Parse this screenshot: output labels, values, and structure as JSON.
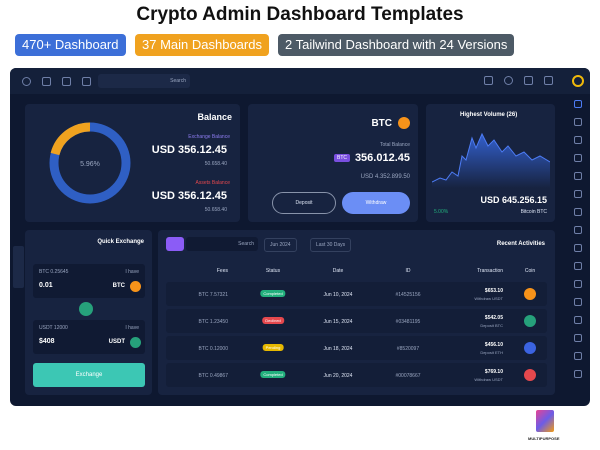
{
  "header": {
    "title": "Crypto Admin Dashboard Templates",
    "badges": [
      {
        "text": "470+ Dashboard",
        "color": "#3c6fd8"
      },
      {
        "text": "37 Main Dashboards",
        "color": "#f0a21f"
      },
      {
        "text": "2 Tailwind Dashboard with 24 Versions",
        "color": "#4d5a66"
      }
    ]
  },
  "topbar": {
    "search": "Search"
  },
  "balance": {
    "title": "Balance",
    "percent": "5.96%",
    "exchange_label": "Exchange Balance",
    "exchange_value": "USD 356.12.45",
    "exchange_sub": "50.658.40",
    "assets_label": "Assets Balance",
    "assets_value": "USD 356.12.45",
    "assets_sub": "50.658.40"
  },
  "btc": {
    "title": "BTC",
    "total_label": "Total Balance",
    "badge": "BTC",
    "total": "356.012.45",
    "usd": "USD 4.352.899.50",
    "deposit": "Deposit",
    "withdraw": "Withdraw"
  },
  "volume": {
    "title": "Highest Volume (26)",
    "value": "USD 645.256.15",
    "change": "5.00%",
    "coin": "Bitcoin BTC"
  },
  "exchange": {
    "title": "Quick Exchange",
    "from_label": "BTC 0.25645",
    "from_have": "I have",
    "from_amount": "0.01",
    "from_coin": "BTC",
    "to_label": "USDT 12000",
    "to_have": "I have",
    "to_amount": "$408",
    "to_coin": "USDT",
    "button": "Exchange"
  },
  "activities": {
    "search": "Search",
    "month": "Jun 2024",
    "range": "Last 30 Days",
    "title": "Recent Activities",
    "columns": [
      "Fees",
      "Status",
      "Date",
      "ID",
      "Transaction",
      "Coin"
    ],
    "rows": [
      {
        "fees": "BTC 7.57321",
        "status": "Completed",
        "status_color": "#22b07d",
        "date": "Jun 10, 2024",
        "id": "#14525156",
        "amount": "$653.10",
        "type": "Withdraw USDT",
        "coin_color": "#f7931a"
      },
      {
        "fees": "BTC 1.23450",
        "status": "Declined",
        "status_color": "#e5484d",
        "date": "Jun 15, 2024",
        "id": "#03481195",
        "amount": "$542.05",
        "type": "Deposit BTC",
        "coin_color": "#26a17b"
      },
      {
        "fees": "BTC 0.12000",
        "status": "Pending",
        "status_color": "#e6b800",
        "date": "Jun 18, 2024",
        "id": "#8520097",
        "amount": "$456.10",
        "type": "Deposit ETH",
        "coin_color": "#3b63e0"
      },
      {
        "fees": "BTC 0.49867",
        "status": "Completed",
        "status_color": "#22b07d",
        "date": "Jun 20, 2024",
        "id": "#00078667",
        "amount": "$769.10",
        "type": "Withdraw USDT",
        "coin_color": "#e5484d"
      }
    ]
  },
  "logo": {
    "text": "MULTIPURPOSE"
  }
}
